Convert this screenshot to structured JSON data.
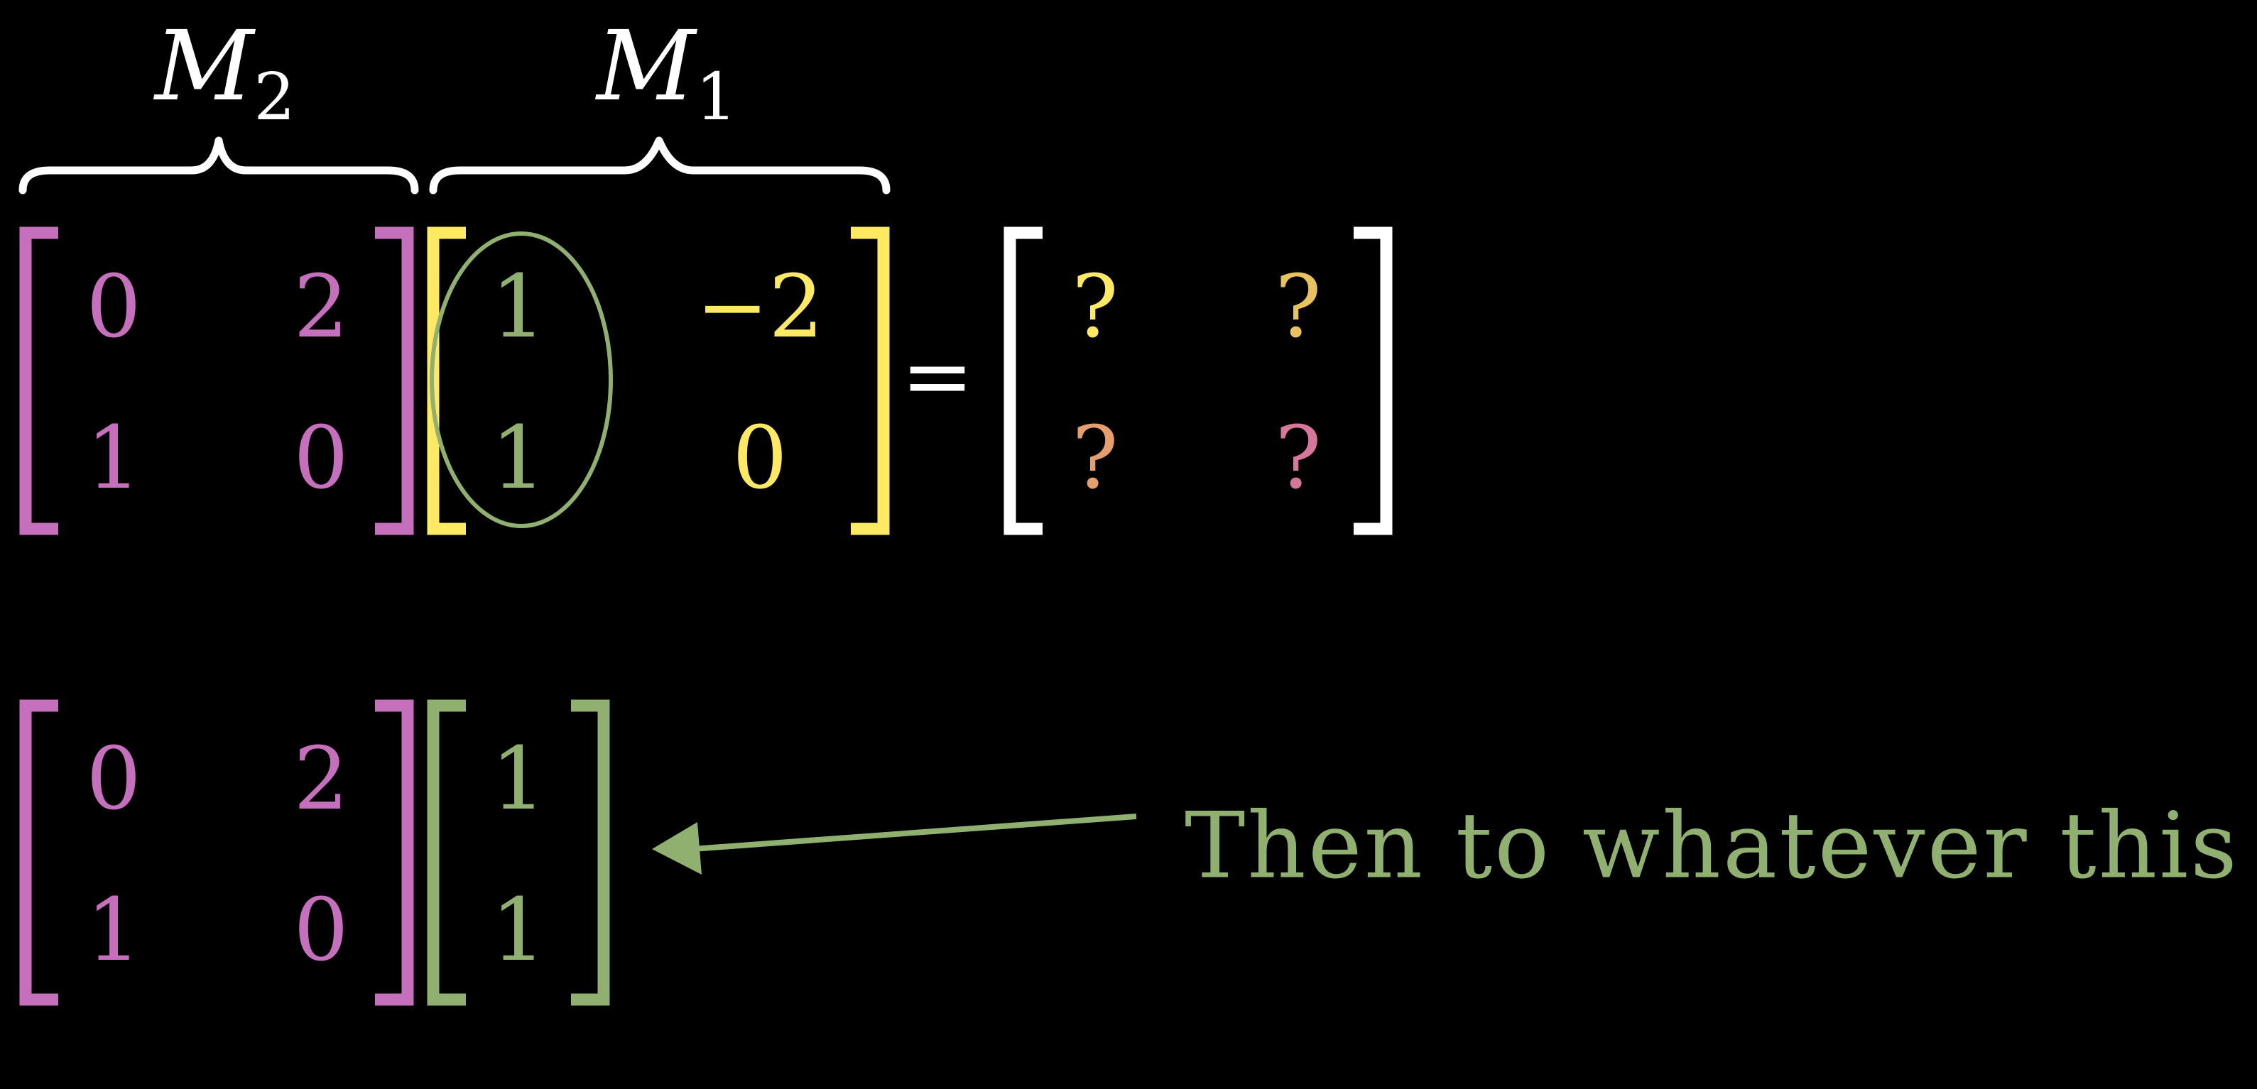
{
  "colors": {
    "background": "#000000",
    "m2": "#c56fbd",
    "m1": "#fde962",
    "green": "#8fb06e",
    "white": "#ffffff",
    "q_orange": "#e69f6c",
    "q_pink": "#d7779b"
  },
  "top": {
    "m2_label": {
      "letter": "M",
      "sub": "2"
    },
    "m1_label": {
      "letter": "M",
      "sub": "1"
    },
    "m2": [
      [
        "0",
        "2"
      ],
      [
        "1",
        "0"
      ]
    ],
    "m1": [
      [
        "1",
        "−2"
      ],
      [
        "1",
        "0"
      ]
    ],
    "equals": "=",
    "result": [
      [
        "?",
        "?"
      ],
      [
        "?",
        "?"
      ]
    ]
  },
  "bottom": {
    "m2": [
      [
        "0",
        "2"
      ],
      [
        "1",
        "0"
      ]
    ],
    "vector": [
      "1",
      "1"
    ],
    "caption": "Then to whatever this is"
  }
}
